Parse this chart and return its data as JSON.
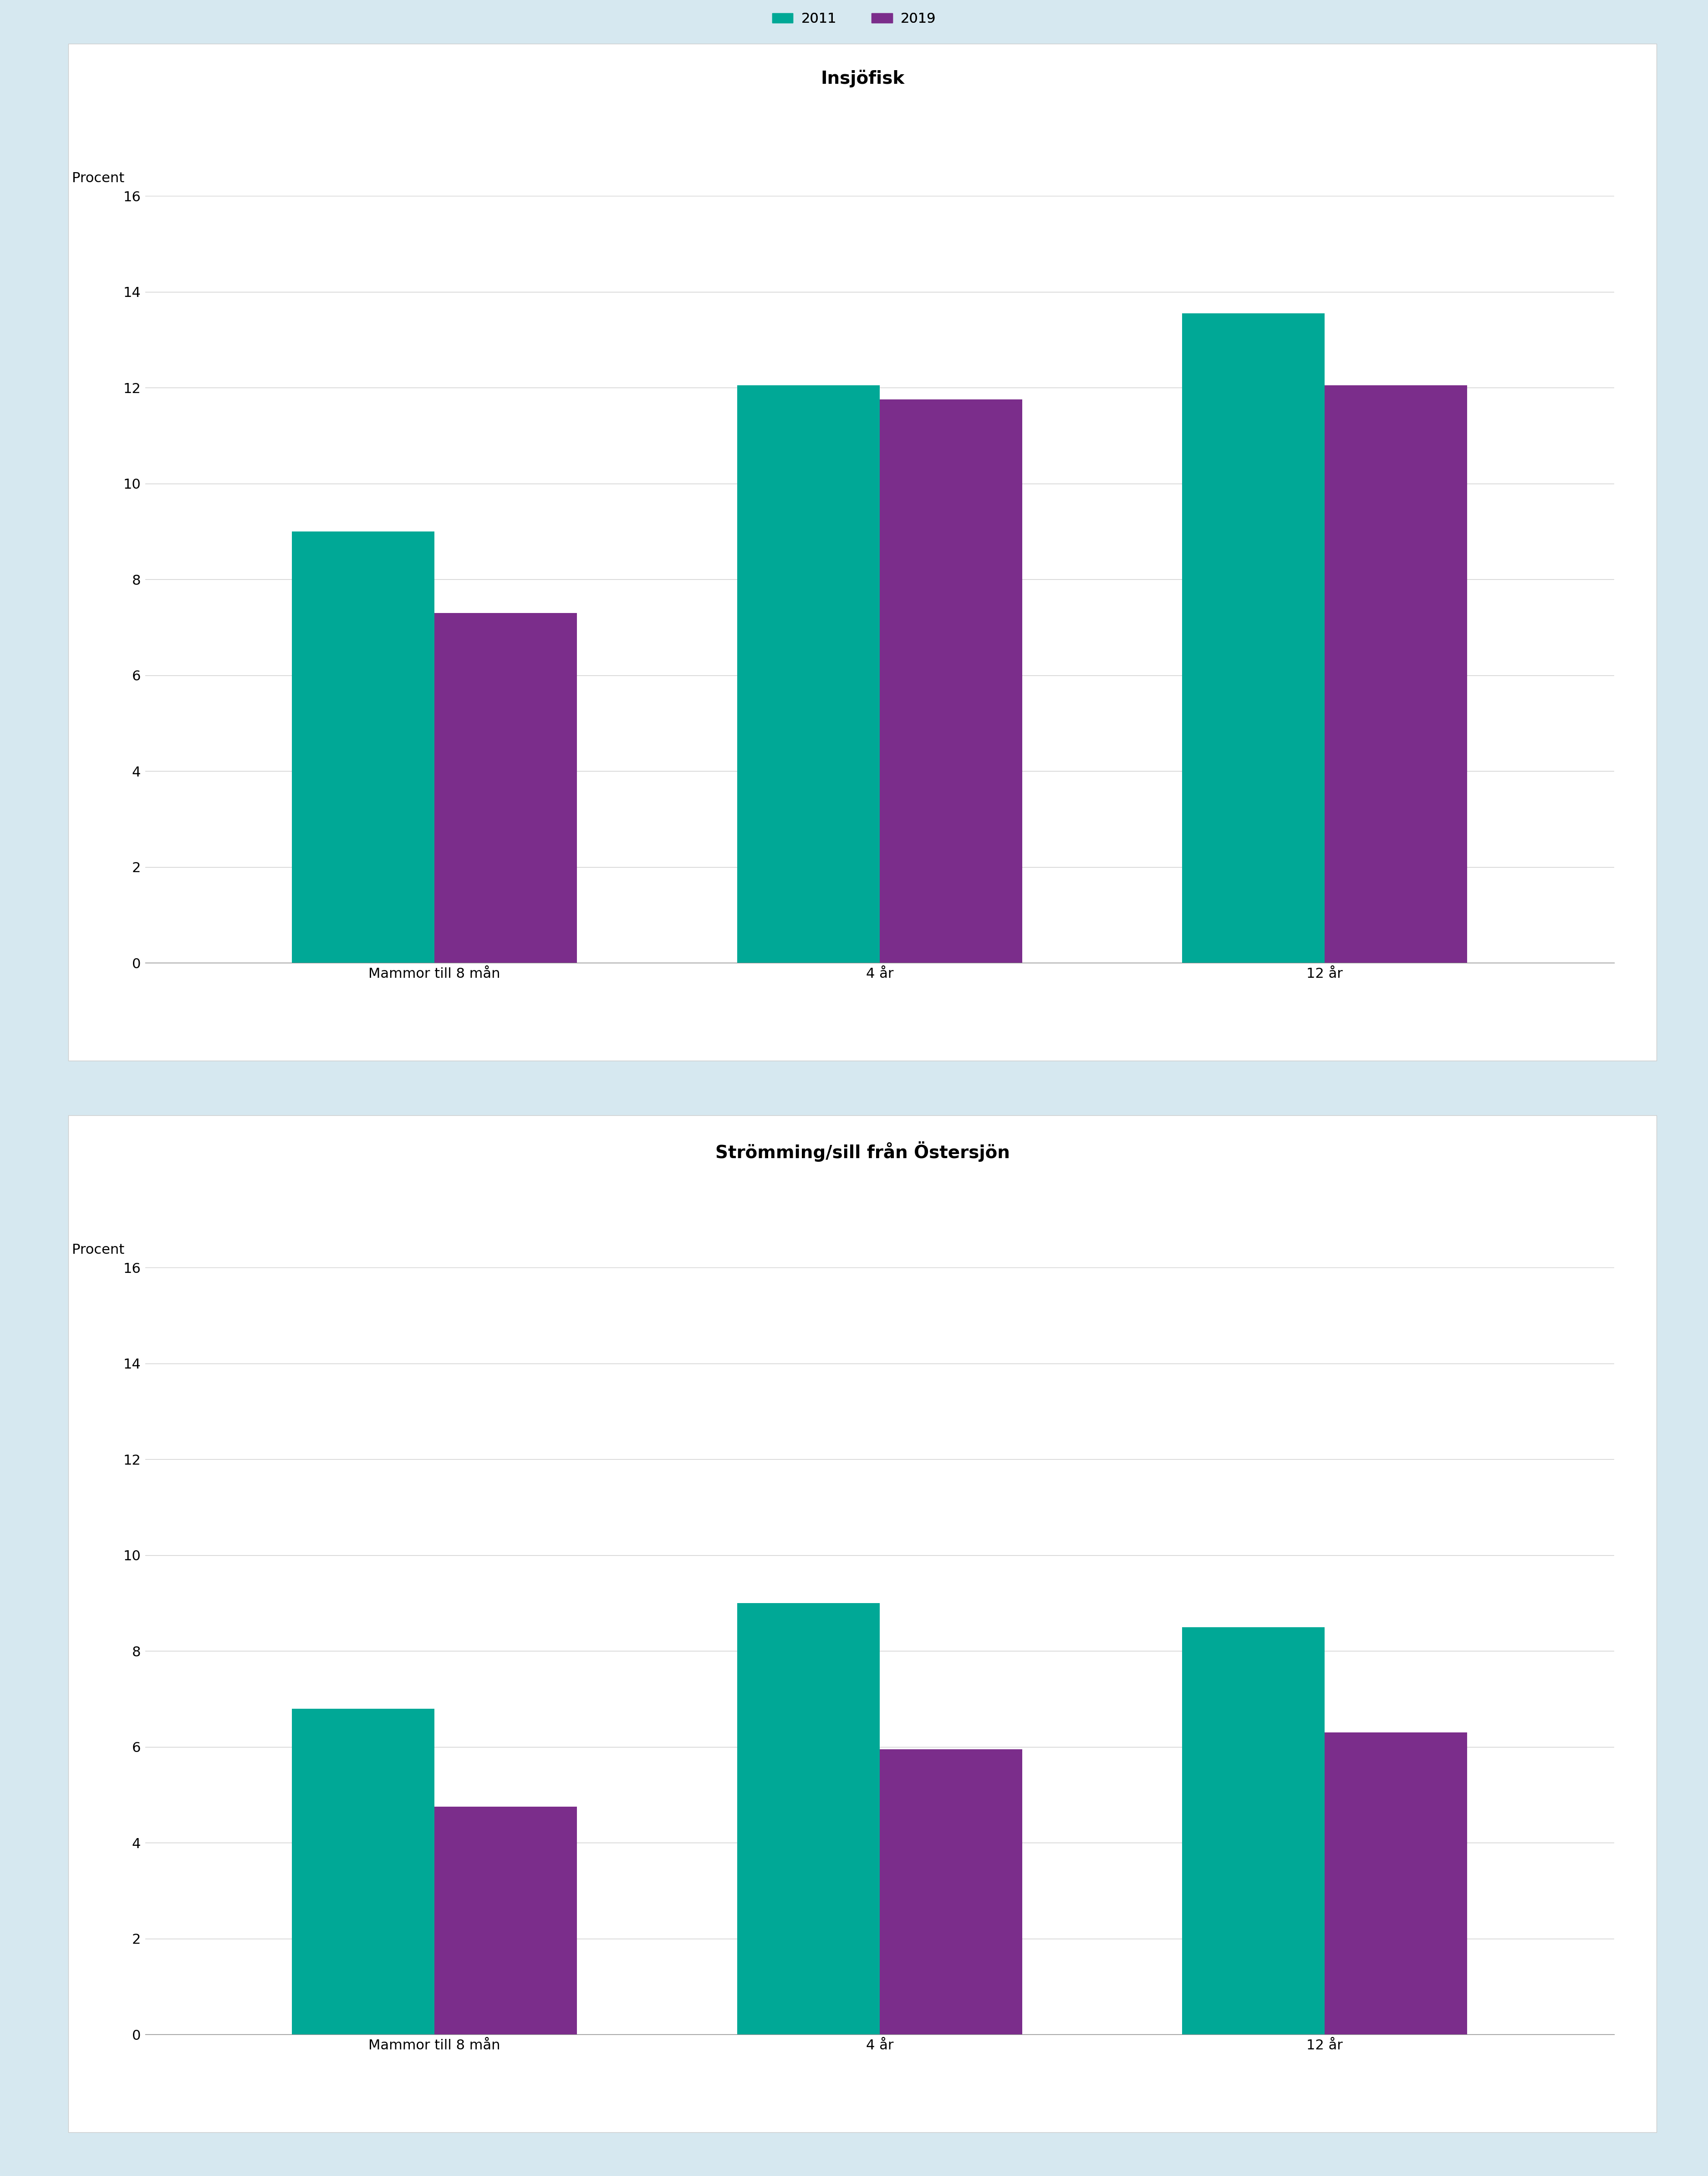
{
  "chart1": {
    "title": "Insjöfisk",
    "categories": [
      "Mammor till 8 mån",
      "4 år",
      "12 år"
    ],
    "values_2011": [
      9.0,
      12.05,
      13.55
    ],
    "values_2019": [
      7.3,
      11.75,
      12.05
    ],
    "ylim": [
      0,
      16
    ],
    "yticks": [
      0,
      2,
      4,
      6,
      8,
      10,
      12,
      14,
      16
    ]
  },
  "chart2": {
    "title": "Strömming/sill från Östersjön",
    "categories": [
      "Mammor till 8 mån",
      "4 år",
      "12 år"
    ],
    "values_2011": [
      6.8,
      9.0,
      8.5
    ],
    "values_2019": [
      4.75,
      5.95,
      6.3
    ],
    "ylim": [
      0,
      16
    ],
    "yticks": [
      0,
      2,
      4,
      6,
      8,
      10,
      12,
      14,
      16
    ]
  },
  "color_2011": "#00A896",
  "color_2019": "#7B2D8B",
  "ylabel": "Procent",
  "legend_2011": "2011",
  "legend_2019": "2019",
  "outer_bg": "#D6E8F0",
  "inner_bg": "#FFFFFF",
  "bar_width": 0.32,
  "title_fontsize": 28,
  "tick_fontsize": 22,
  "legend_fontsize": 22,
  "ylabel_fontsize": 22
}
